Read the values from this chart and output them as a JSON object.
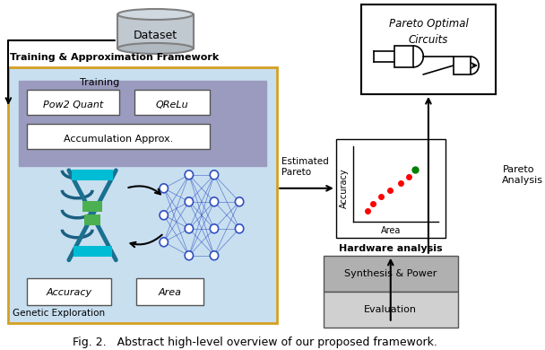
{
  "title": "Fig. 2.   Abstract high-level overview of our proposed framework.",
  "background_color": "#ffffff",
  "framework_box": {
    "label": "Training & Approximation Framework",
    "inner_label": "Genetic Exploration",
    "box_color": "#add8e6",
    "border_color": "#d4a020",
    "inner_box_color": "#9090b0"
  },
  "pareto_box": {
    "label": "Pareto Optimal\nCircuits"
  },
  "hardware_box": {
    "label1": "Hardware analysis",
    "label2": "Synthesis & Power",
    "label3": "Evaluation",
    "box_color": "#c0c0c0"
  },
  "scatter_points_red": [
    [
      0.15,
      0.12
    ],
    [
      0.22,
      0.22
    ],
    [
      0.32,
      0.32
    ],
    [
      0.42,
      0.4
    ],
    [
      0.55,
      0.5
    ],
    [
      0.65,
      0.58
    ]
  ],
  "scatter_points_green": [
    [
      0.72,
      0.68
    ]
  ],
  "arrows": [
    {
      "label": "Training",
      "direction": "right"
    },
    {
      "label": "Estimated\nPareto",
      "direction": "right"
    },
    {
      "label": "Pareto\nAnalysis",
      "direction": "up"
    }
  ],
  "text_elements": [
    {
      "text": "Pow2 Quant",
      "style": "italic"
    },
    {
      "text": "QReLu",
      "style": "italic"
    },
    {
      "text": "Accumulation Approx.",
      "style": "normal"
    },
    {
      "text": "Accuracy",
      "style": "italic"
    },
    {
      "text": "Area",
      "style": "italic"
    }
  ]
}
